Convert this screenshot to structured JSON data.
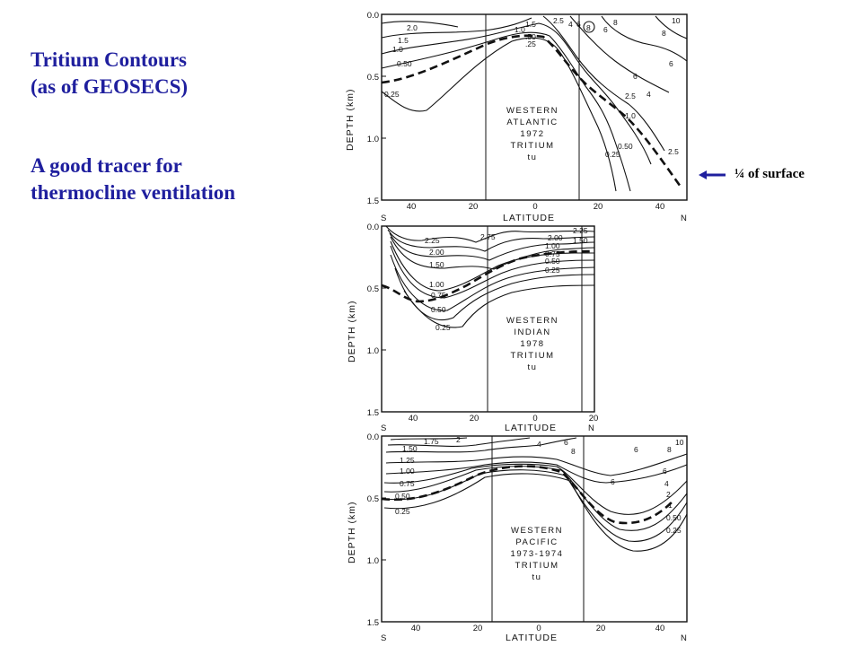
{
  "slide": {
    "title_line1": "Tritium Contours",
    "title_line2": "(as of GEOSECS)",
    "subtitle_line1": "A good tracer for",
    "subtitle_line2": "thermocline ventilation",
    "callout": "¼ of surface",
    "accent_color": "#1f1f9e"
  },
  "axes": {
    "ylabel": "DEPTH (km)",
    "xlabel": "LATITUDE",
    "south": "S",
    "north": "N"
  },
  "panels": [
    {
      "id": "atlantic",
      "label": [
        "WESTERN",
        "ATLANTIC",
        "1972",
        "TRITIUM",
        "tu"
      ],
      "yticks": [
        "0.0",
        "0.5",
        "1.0",
        "1.5"
      ],
      "xticks": [
        "40",
        "20",
        "0",
        "20",
        "40"
      ],
      "contour_labels": [
        "2.0",
        "1.5",
        "1.0",
        "0.50",
        "0.25",
        "1.5",
        "1.0",
        ".50",
        ".25",
        "2.5",
        "4",
        "6",
        "8",
        "6",
        "8",
        "10",
        "8",
        "6",
        "6",
        "4",
        "2.5",
        "1.0",
        "0.50",
        "0.25",
        "2.5"
      ]
    },
    {
      "id": "indian",
      "label": [
        "WESTERN",
        "INDIAN",
        "1978",
        "TRITIUM",
        "tu"
      ],
      "yticks": [
        "0.0",
        "0.5",
        "1.0",
        "1.5"
      ],
      "xticks": [
        "40",
        "20",
        "0",
        "20"
      ],
      "contour_labels": [
        "2.25",
        "2.00",
        "1.50",
        "1.00",
        "0.75",
        "0.50",
        "0.25",
        "2.75",
        "2.00",
        "1.00",
        "0.75",
        "0.50",
        "0.25",
        "2.25",
        "1.50"
      ]
    },
    {
      "id": "pacific",
      "label": [
        "WESTERN",
        "PACIFIC",
        "1973-1974",
        "TRITIUM",
        "tu"
      ],
      "yticks": [
        "0.0",
        "0.5",
        "1.0",
        "1.5"
      ],
      "xticks": [
        "40",
        "20",
        "0",
        "20",
        "40"
      ],
      "contour_labels": [
        "1.50",
        "1.75",
        "2",
        "1.25",
        "1.00",
        "0.75",
        "0.50",
        "0.25",
        "4",
        "6",
        "8",
        "6",
        "8",
        "10",
        "6",
        "6",
        "4",
        "2",
        "1",
        "0.50",
        "0.25"
      ]
    }
  ]
}
